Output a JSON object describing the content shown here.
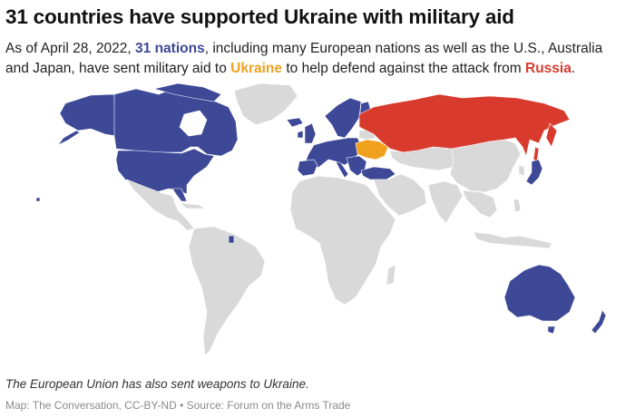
{
  "title": "31 countries have supported Ukraine with military aid",
  "subtitle": {
    "part1": "As of April 28, 2022, ",
    "nations": "31 nations",
    "part2": ", including many European nations as well as the U.S., Australia and Japan, have sent military aid to ",
    "ukraine": "Ukraine",
    "part3": " to help defend against the attack from ",
    "russia": "Russia",
    "part4": "."
  },
  "note": "The European Union has also sent weapons to Ukraine.",
  "credit": "Map: The Conversation, CC-BY-ND • Source: Forum on the Arms Trade",
  "colors": {
    "aid_countries": "#3d4897",
    "ukraine": "#f0a21f",
    "russia": "#d83b2e",
    "other": "#d9d9d9",
    "background": "#ffffff"
  },
  "map": {
    "aid_regions": [
      "Canada",
      "United States",
      "Alaska",
      "Greenland (excluded)",
      "Western Europe",
      "Turkey",
      "Japan",
      "Australia",
      "New Zealand"
    ],
    "highlighted": [
      "Ukraine",
      "Russia"
    ]
  }
}
